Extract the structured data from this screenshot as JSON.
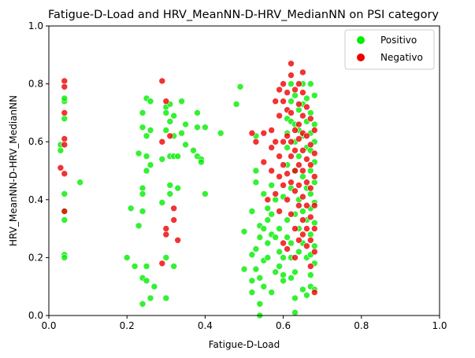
{
  "chart_data": {
    "type": "scatter",
    "title": "Fatigue-D-Load and HRV_MeanNN-D-HRV_MedianNN on PSI category",
    "xlabel": "Fatigue-D-Load",
    "ylabel": "HRV_MeanNN-D-HRV_MedianNN",
    "xlim": [
      0,
      1
    ],
    "ylim": [
      0,
      1
    ],
    "xticks": [
      "0.0",
      "0.2",
      "0.4",
      "0.6",
      "0.8",
      "1.0"
    ],
    "yticks": [
      "0.0",
      "0.2",
      "0.4",
      "0.6",
      "0.8",
      "1.0"
    ],
    "grid": false,
    "legend_position": "top-right",
    "series": [
      {
        "name": "Positivo",
        "color": "#00ee00",
        "points": [
          [
            0.03,
            0.57
          ],
          [
            0.04,
            0.74
          ],
          [
            0.04,
            0.68
          ],
          [
            0.04,
            0.36
          ],
          [
            0.04,
            0.42
          ],
          [
            0.04,
            0.33
          ],
          [
            0.04,
            0.21
          ],
          [
            0.04,
            0.2
          ],
          [
            0.03,
            0.59
          ],
          [
            0.04,
            0.75
          ],
          [
            0.08,
            0.46
          ],
          [
            0.2,
            0.2
          ],
          [
            0.21,
            0.37
          ],
          [
            0.22,
            0.17
          ],
          [
            0.23,
            0.31
          ],
          [
            0.23,
            0.56
          ],
          [
            0.24,
            0.7
          ],
          [
            0.24,
            0.65
          ],
          [
            0.24,
            0.44
          ],
          [
            0.24,
            0.42
          ],
          [
            0.24,
            0.36
          ],
          [
            0.24,
            0.13
          ],
          [
            0.24,
            0.04
          ],
          [
            0.25,
            0.75
          ],
          [
            0.25,
            0.62
          ],
          [
            0.25,
            0.55
          ],
          [
            0.25,
            0.5
          ],
          [
            0.25,
            0.17
          ],
          [
            0.25,
            0.12
          ],
          [
            0.26,
            0.74
          ],
          [
            0.26,
            0.64
          ],
          [
            0.26,
            0.52
          ],
          [
            0.26,
            0.06
          ],
          [
            0.27,
            0.1
          ],
          [
            0.29,
            0.54
          ],
          [
            0.29,
            0.39
          ],
          [
            0.3,
            0.72
          ],
          [
            0.3,
            0.7
          ],
          [
            0.3,
            0.64
          ],
          [
            0.3,
            0.2
          ],
          [
            0.3,
            0.06
          ],
          [
            0.31,
            0.73
          ],
          [
            0.31,
            0.67
          ],
          [
            0.31,
            0.55
          ],
          [
            0.31,
            0.45
          ],
          [
            0.31,
            0.42
          ],
          [
            0.32,
            0.69
          ],
          [
            0.32,
            0.62
          ],
          [
            0.32,
            0.55
          ],
          [
            0.32,
            0.17
          ],
          [
            0.33,
            0.55
          ],
          [
            0.33,
            0.44
          ],
          [
            0.34,
            0.74
          ],
          [
            0.34,
            0.63
          ],
          [
            0.35,
            0.66
          ],
          [
            0.35,
            0.59
          ],
          [
            0.37,
            0.57
          ],
          [
            0.38,
            0.7
          ],
          [
            0.38,
            0.65
          ],
          [
            0.38,
            0.55
          ],
          [
            0.39,
            0.54
          ],
          [
            0.39,
            0.53
          ],
          [
            0.4,
            0.65
          ],
          [
            0.4,
            0.42
          ],
          [
            0.44,
            0.63
          ],
          [
            0.48,
            0.73
          ],
          [
            0.49,
            0.79
          ],
          [
            0.5,
            0.29
          ],
          [
            0.5,
            0.16
          ],
          [
            0.52,
            0.12
          ],
          [
            0.52,
            0.08
          ],
          [
            0.52,
            0.21
          ],
          [
            0.52,
            0.36
          ],
          [
            0.53,
            0.62
          ],
          [
            0.53,
            0.5
          ],
          [
            0.53,
            0.46
          ],
          [
            0.53,
            0.23
          ],
          [
            0.53,
            0.16
          ],
          [
            0.54,
            0.31
          ],
          [
            0.54,
            0.27
          ],
          [
            0.54,
            0.13
          ],
          [
            0.54,
            0.04
          ],
          [
            0.54,
            0.0
          ],
          [
            0.55,
            0.42
          ],
          [
            0.55,
            0.3
          ],
          [
            0.55,
            0.19
          ],
          [
            0.55,
            0.1
          ],
          [
            0.56,
            0.37
          ],
          [
            0.56,
            0.33
          ],
          [
            0.56,
            0.25
          ],
          [
            0.56,
            0.2
          ],
          [
            0.57,
            0.45
          ],
          [
            0.57,
            0.35
          ],
          [
            0.57,
            0.28
          ],
          [
            0.57,
            0.08
          ],
          [
            0.58,
            0.4
          ],
          [
            0.58,
            0.27
          ],
          [
            0.58,
            0.15
          ],
          [
            0.59,
            0.3
          ],
          [
            0.59,
            0.22
          ],
          [
            0.59,
            0.17
          ],
          [
            0.6,
            0.41
          ],
          [
            0.6,
            0.2
          ],
          [
            0.6,
            0.14
          ],
          [
            0.6,
            0.12
          ],
          [
            0.61,
            0.68
          ],
          [
            0.61,
            0.63
          ],
          [
            0.61,
            0.58
          ],
          [
            0.61,
            0.52
          ],
          [
            0.61,
            0.33
          ],
          [
            0.61,
            0.27
          ],
          [
            0.62,
            0.8
          ],
          [
            0.62,
            0.74
          ],
          [
            0.62,
            0.67
          ],
          [
            0.62,
            0.44
          ],
          [
            0.62,
            0.25
          ],
          [
            0.62,
            0.2
          ],
          [
            0.62,
            0.13
          ],
          [
            0.63,
            0.76
          ],
          [
            0.63,
            0.66
          ],
          [
            0.63,
            0.6
          ],
          [
            0.63,
            0.5
          ],
          [
            0.63,
            0.35
          ],
          [
            0.63,
            0.15
          ],
          [
            0.63,
            0.06
          ],
          [
            0.63,
            0.01
          ],
          [
            0.64,
            0.71
          ],
          [
            0.64,
            0.64
          ],
          [
            0.64,
            0.55
          ],
          [
            0.64,
            0.4
          ],
          [
            0.64,
            0.3
          ],
          [
            0.64,
            0.22
          ],
          [
            0.65,
            0.8
          ],
          [
            0.65,
            0.73
          ],
          [
            0.65,
            0.62
          ],
          [
            0.65,
            0.48
          ],
          [
            0.65,
            0.36
          ],
          [
            0.65,
            0.25
          ],
          [
            0.65,
            0.09
          ],
          [
            0.66,
            0.75
          ],
          [
            0.66,
            0.67
          ],
          [
            0.66,
            0.58
          ],
          [
            0.66,
            0.44
          ],
          [
            0.66,
            0.33
          ],
          [
            0.66,
            0.2
          ],
          [
            0.66,
            0.07
          ],
          [
            0.67,
            0.8
          ],
          [
            0.67,
            0.7
          ],
          [
            0.67,
            0.63
          ],
          [
            0.67,
            0.57
          ],
          [
            0.67,
            0.5
          ],
          [
            0.67,
            0.42
          ],
          [
            0.67,
            0.37
          ],
          [
            0.67,
            0.28
          ],
          [
            0.67,
            0.21
          ],
          [
            0.67,
            0.14
          ],
          [
            0.67,
            0.1
          ],
          [
            0.68,
            0.76
          ],
          [
            0.68,
            0.66
          ],
          [
            0.68,
            0.6
          ],
          [
            0.68,
            0.53
          ],
          [
            0.68,
            0.46
          ],
          [
            0.68,
            0.39
          ],
          [
            0.68,
            0.32
          ],
          [
            0.68,
            0.24
          ],
          [
            0.68,
            0.18
          ],
          [
            0.68,
            0.09
          ]
        ]
      },
      {
        "name": "Negativo",
        "color": "#ee0000",
        "points": [
          [
            0.04,
            0.81
          ],
          [
            0.04,
            0.79
          ],
          [
            0.04,
            0.7
          ],
          [
            0.04,
            0.61
          ],
          [
            0.04,
            0.59
          ],
          [
            0.04,
            0.49
          ],
          [
            0.03,
            0.51
          ],
          [
            0.04,
            0.36
          ],
          [
            0.29,
            0.81
          ],
          [
            0.29,
            0.6
          ],
          [
            0.29,
            0.18
          ],
          [
            0.3,
            0.3
          ],
          [
            0.3,
            0.28
          ],
          [
            0.3,
            0.74
          ],
          [
            0.31,
            0.62
          ],
          [
            0.32,
            0.37
          ],
          [
            0.32,
            0.33
          ],
          [
            0.33,
            0.26
          ],
          [
            0.52,
            0.63
          ],
          [
            0.53,
            0.6
          ],
          [
            0.55,
            0.63
          ],
          [
            0.55,
            0.53
          ],
          [
            0.56,
            0.4
          ],
          [
            0.57,
            0.58
          ],
          [
            0.57,
            0.64
          ],
          [
            0.57,
            0.5
          ],
          [
            0.58,
            0.74
          ],
          [
            0.58,
            0.6
          ],
          [
            0.58,
            0.42
          ],
          [
            0.59,
            0.78
          ],
          [
            0.59,
            0.69
          ],
          [
            0.59,
            0.55
          ],
          [
            0.59,
            0.48
          ],
          [
            0.59,
            0.36
          ],
          [
            0.6,
            0.8
          ],
          [
            0.6,
            0.74
          ],
          [
            0.6,
            0.6
          ],
          [
            0.6,
            0.52
          ],
          [
            0.6,
            0.45
          ],
          [
            0.6,
            0.25
          ],
          [
            0.61,
            0.77
          ],
          [
            0.61,
            0.71
          ],
          [
            0.61,
            0.62
          ],
          [
            0.61,
            0.49
          ],
          [
            0.61,
            0.4
          ],
          [
            0.61,
            0.23
          ],
          [
            0.62,
            0.87
          ],
          [
            0.62,
            0.83
          ],
          [
            0.62,
            0.7
          ],
          [
            0.62,
            0.6
          ],
          [
            0.62,
            0.55
          ],
          [
            0.62,
            0.46
          ],
          [
            0.62,
            0.35
          ],
          [
            0.63,
            0.78
          ],
          [
            0.63,
            0.64
          ],
          [
            0.63,
            0.57
          ],
          [
            0.63,
            0.5
          ],
          [
            0.63,
            0.43
          ],
          [
            0.63,
            0.3
          ],
          [
            0.63,
            0.2
          ],
          [
            0.64,
            0.8
          ],
          [
            0.64,
            0.73
          ],
          [
            0.64,
            0.66
          ],
          [
            0.64,
            0.61
          ],
          [
            0.64,
            0.52
          ],
          [
            0.64,
            0.45
          ],
          [
            0.64,
            0.38
          ],
          [
            0.64,
            0.26
          ],
          [
            0.65,
            0.84
          ],
          [
            0.65,
            0.77
          ],
          [
            0.65,
            0.69
          ],
          [
            0.65,
            0.63
          ],
          [
            0.65,
            0.57
          ],
          [
            0.65,
            0.5
          ],
          [
            0.65,
            0.41
          ],
          [
            0.65,
            0.33
          ],
          [
            0.65,
            0.28
          ],
          [
            0.66,
            0.72
          ],
          [
            0.66,
            0.62
          ],
          [
            0.66,
            0.54
          ],
          [
            0.66,
            0.46
          ],
          [
            0.66,
            0.38
          ],
          [
            0.66,
            0.3
          ],
          [
            0.66,
            0.24
          ],
          [
            0.67,
            0.68
          ],
          [
            0.67,
            0.59
          ],
          [
            0.67,
            0.52
          ],
          [
            0.67,
            0.44
          ],
          [
            0.67,
            0.34
          ],
          [
            0.67,
            0.26
          ],
          [
            0.67,
            0.17
          ],
          [
            0.68,
            0.64
          ],
          [
            0.68,
            0.56
          ],
          [
            0.68,
            0.48
          ],
          [
            0.68,
            0.38
          ],
          [
            0.68,
            0.3
          ],
          [
            0.68,
            0.22
          ],
          [
            0.68,
            0.08
          ]
        ]
      }
    ]
  }
}
